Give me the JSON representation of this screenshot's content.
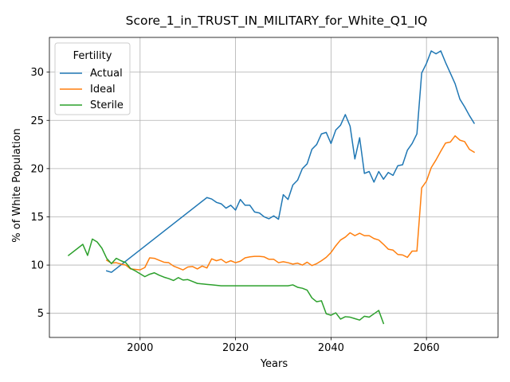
{
  "chart_data": {
    "type": "line",
    "title": "Score_1_in_TRUST_IN_MILITARY_for_White_Q1_IQ",
    "xlabel": "Years",
    "ylabel": "% of White Population",
    "xlim": [
      1981,
      2075
    ],
    "ylim": [
      2.5,
      33.6
    ],
    "xticks": [
      2000,
      2020,
      2040,
      2060
    ],
    "yticks": [
      5,
      10,
      15,
      20,
      25,
      30
    ],
    "grid": true,
    "legend": {
      "title": "Fertility",
      "placement": "top-left"
    },
    "series": [
      {
        "name": "Actual",
        "color": "#1f77b4",
        "x": [
          1993,
          1994,
          2014,
          2015,
          2016,
          2017,
          2018,
          2019,
          2020,
          2021,
          2022,
          2023,
          2024,
          2025,
          2026,
          2027,
          2028,
          2029,
          2030,
          2031,
          2032,
          2033,
          2034,
          2035,
          2036,
          2037,
          2038,
          2039,
          2040,
          2041,
          2042,
          2043,
          2044,
          2045,
          2046,
          2047,
          2048,
          2049,
          2050,
          2051,
          2052,
          2053,
          2054,
          2055,
          2056,
          2057,
          2058,
          2059,
          2060,
          2061,
          2062,
          2063,
          2064,
          2065,
          2066,
          2067,
          2068,
          2069,
          2070
        ],
        "y": [
          9.4,
          9.25,
          17.0,
          16.85,
          16.5,
          16.35,
          15.9,
          16.2,
          15.7,
          16.8,
          16.2,
          16.2,
          15.5,
          15.4,
          15.0,
          14.8,
          15.1,
          14.75,
          17.3,
          16.8,
          18.3,
          18.8,
          20.0,
          20.5,
          22.0,
          22.5,
          23.6,
          23.75,
          22.6,
          24.0,
          24.5,
          25.6,
          24.4,
          21.0,
          23.2,
          19.5,
          19.7,
          18.6,
          19.7,
          18.9,
          19.6,
          19.3,
          20.3,
          20.4,
          21.9,
          22.6,
          23.6,
          29.9,
          30.9,
          32.2,
          31.9,
          32.2,
          31.0,
          29.9,
          28.8,
          27.2,
          26.4,
          25.5,
          24.7
        ]
      },
      {
        "name": "Ideal",
        "color": "#ff7f0e",
        "x": [
          1993,
          1994,
          1995,
          1996,
          1997,
          1998,
          1999,
          2000,
          2001,
          2002,
          2003,
          2004,
          2005,
          2006,
          2007,
          2008,
          2009,
          2010,
          2011,
          2012,
          2013,
          2014,
          2015,
          2016,
          2017,
          2018,
          2019,
          2020,
          2021,
          2022,
          2023,
          2024,
          2025,
          2026,
          2027,
          2028,
          2029,
          2030,
          2031,
          2032,
          2033,
          2034,
          2035,
          2036,
          2037,
          2038,
          2039,
          2040,
          2041,
          2042,
          2043,
          2044,
          2045,
          2046,
          2047,
          2048,
          2049,
          2050,
          2051,
          2052,
          2053,
          2054,
          2055,
          2056,
          2057,
          2058,
          2059,
          2060,
          2061,
          2062,
          2063,
          2064,
          2065,
          2066,
          2067,
          2068,
          2069,
          2070
        ],
        "y": [
          10.5,
          10.2,
          10.25,
          10.1,
          10.0,
          9.6,
          9.55,
          9.5,
          9.75,
          10.75,
          10.7,
          10.5,
          10.3,
          10.25,
          9.9,
          9.7,
          9.5,
          9.8,
          9.85,
          9.6,
          9.9,
          9.7,
          10.65,
          10.45,
          10.6,
          10.25,
          10.45,
          10.25,
          10.4,
          10.75,
          10.85,
          10.9,
          10.9,
          10.85,
          10.6,
          10.6,
          10.25,
          10.35,
          10.25,
          10.1,
          10.2,
          10.0,
          10.3,
          9.95,
          10.15,
          10.45,
          10.8,
          11.3,
          12.0,
          12.6,
          12.9,
          13.35,
          13.05,
          13.3,
          13.05,
          13.05,
          12.75,
          12.6,
          12.15,
          11.65,
          11.55,
          11.1,
          11.05,
          10.8,
          11.45,
          11.45,
          18.0,
          18.7,
          20.1,
          20.9,
          21.8,
          22.65,
          22.75,
          23.4,
          22.95,
          22.8,
          22.0,
          21.7
        ]
      },
      {
        "name": "Sterile",
        "color": "#2ca02c",
        "x": [
          1985,
          1988,
          1989,
          1990,
          1991,
          1992,
          1993,
          1994,
          1995,
          1996,
          1997,
          1998,
          1999,
          2000,
          2001,
          2002,
          2003,
          2004,
          2005,
          2006,
          2007,
          2008,
          2009,
          2010,
          2011,
          2012,
          2013,
          2014,
          2015,
          2016,
          2017,
          2018,
          2019,
          2020,
          2021,
          2022,
          2023,
          2024,
          2025,
          2026,
          2027,
          2028,
          2029,
          2030,
          2031,
          2032,
          2033,
          2034,
          2035,
          2036,
          2037,
          2038,
          2039,
          2040,
          2041,
          2042,
          2043,
          2044,
          2045,
          2046,
          2047,
          2048,
          2049,
          2050,
          2051
        ],
        "y": [
          11.0,
          12.15,
          11.0,
          12.7,
          12.4,
          11.75,
          10.7,
          10.15,
          10.7,
          10.45,
          10.25,
          9.65,
          9.4,
          9.1,
          8.8,
          9.05,
          9.2,
          8.95,
          8.75,
          8.6,
          8.4,
          8.7,
          8.45,
          8.5,
          8.3,
          8.1,
          8.05,
          8.0,
          7.95,
          7.9,
          7.85,
          7.85,
          7.85,
          7.85,
          7.85,
          7.85,
          7.85,
          7.85,
          7.85,
          7.85,
          7.85,
          7.85,
          7.85,
          7.85,
          7.85,
          7.95,
          7.7,
          7.6,
          7.4,
          6.6,
          6.2,
          6.3,
          4.95,
          4.8,
          5.05,
          4.4,
          4.65,
          4.6,
          4.45,
          4.3,
          4.7,
          4.6,
          4.95,
          5.3,
          3.95
        ]
      }
    ]
  }
}
